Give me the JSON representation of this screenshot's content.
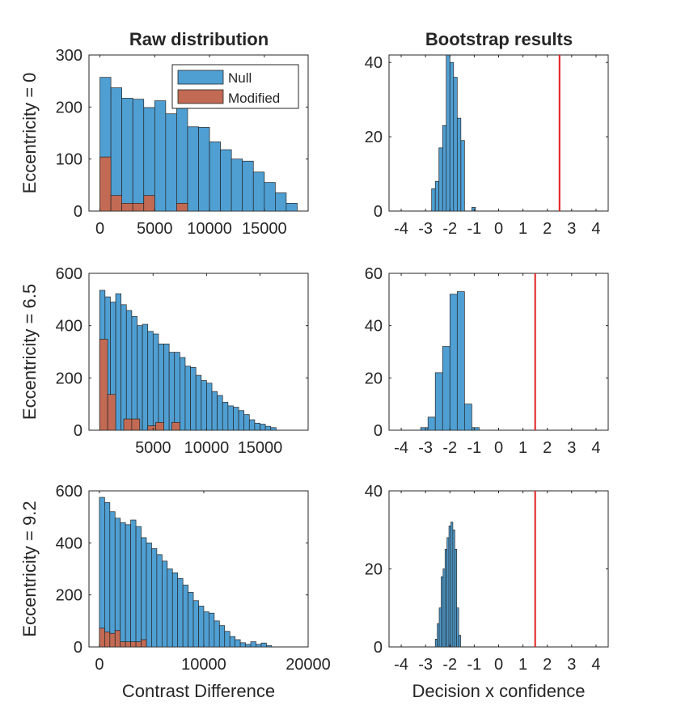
{
  "colors": {
    "null": "#4f9fd3",
    "modified": "#c26a53",
    "axis": "#262626",
    "refline": "#e11f1f"
  },
  "legend": {
    "null_label": "Null",
    "modified_label": "Modified"
  },
  "chart_data": [
    {
      "type": "bar",
      "title": "Raw distribution",
      "ylabel": "Eccentricity = 0",
      "xlabel": "",
      "xlim": [
        -1000,
        19000
      ],
      "ylim": [
        0,
        300
      ],
      "xticks": [
        0,
        5000,
        10000,
        15000
      ],
      "xtick_labels": [
        "0",
        "5000",
        "10000",
        "15000"
      ],
      "yticks": [
        0,
        100,
        200,
        300
      ],
      "ytick_labels": [
        "0",
        "100",
        "200",
        "300"
      ],
      "legend": "top-right",
      "series": [
        {
          "name": "Null",
          "role": "null",
          "bin_edges": [
            0,
            1000,
            2000,
            3000,
            4000,
            5000,
            6000,
            7000,
            8000,
            9000,
            10000,
            11000,
            12000,
            13000,
            14000,
            15000,
            16000,
            17000,
            18000
          ],
          "values": [
            257,
            237,
            217,
            215,
            199,
            212,
            187,
            200,
            162,
            161,
            133,
            118,
            100,
            96,
            75,
            55,
            35,
            15
          ]
        },
        {
          "name": "Modified",
          "role": "modified",
          "bin_edges": [
            0,
            1000,
            2000,
            3000,
            4000,
            5000,
            6000,
            7000,
            8000
          ],
          "values": [
            104,
            30,
            15,
            15,
            30,
            0,
            0,
            15
          ]
        }
      ]
    },
    {
      "type": "bar",
      "title": "Bootstrap results",
      "ylabel": "",
      "xlabel": "",
      "xlim": [
        -4.5,
        4.5
      ],
      "ylim": [
        0,
        42
      ],
      "xticks": [
        -4,
        -3,
        -2,
        -1,
        0,
        1,
        2,
        3,
        4
      ],
      "xtick_labels": [
        "-4",
        "-3",
        "-2",
        "-1",
        "0",
        "1",
        "2",
        "3",
        "4"
      ],
      "yticks": [
        0,
        20,
        40
      ],
      "ytick_labels": [
        "0",
        "20",
        "40"
      ],
      "refline_x": 2.5,
      "series": [
        {
          "name": "",
          "role": "null",
          "bin_edges": [
            -2.75,
            -2.6,
            -2.45,
            -2.3,
            -2.15,
            -2.0,
            -1.85,
            -1.7,
            -1.55,
            -1.4,
            -1.25,
            -1.1,
            -0.95
          ],
          "values": [
            6,
            8,
            17,
            23,
            42,
            40,
            36,
            25,
            19,
            0,
            0,
            1
          ]
        }
      ]
    },
    {
      "type": "bar",
      "title": "",
      "ylabel": "Eccentricity = 6.5",
      "xlabel": "",
      "xlim": [
        -1000,
        19500
      ],
      "ylim": [
        0,
        600
      ],
      "xticks": [
        5000,
        10000,
        15000
      ],
      "xtick_labels": [
        "5000",
        "10000",
        "15000"
      ],
      "yticks": [
        0,
        200,
        400,
        600
      ],
      "ytick_labels": [
        "0",
        "200",
        "400",
        "600"
      ],
      "series": [
        {
          "name": "Null",
          "role": "null",
          "bin_edges": [
            0,
            500,
            1000,
            1500,
            2000,
            2500,
            3000,
            3500,
            4000,
            4500,
            5000,
            5500,
            6000,
            6500,
            7000,
            7500,
            8000,
            8500,
            9000,
            9500,
            10000,
            10500,
            11000,
            11500,
            12000,
            12500,
            13000,
            13500,
            14000,
            14500,
            15000,
            15500,
            16000,
            16500
          ],
          "values": [
            535,
            510,
            490,
            522,
            480,
            458,
            435,
            400,
            405,
            378,
            368,
            330,
            330,
            298,
            298,
            278,
            245,
            240,
            210,
            190,
            180,
            148,
            133,
            107,
            93,
            88,
            75,
            60,
            40,
            27,
            23,
            15,
            10
          ]
        },
        {
          "name": "Modified",
          "role": "modified",
          "bin_edges": [
            0,
            750,
            1500,
            2250,
            3000,
            3750,
            4500,
            5250,
            6000,
            6750,
            7500
          ],
          "values": [
            348,
            137,
            0,
            43,
            43,
            0,
            17,
            30,
            0,
            30
          ]
        }
      ]
    },
    {
      "type": "bar",
      "title": "",
      "ylabel": "",
      "xlabel": "",
      "xlim": [
        -4.5,
        4.5
      ],
      "ylim": [
        0,
        60
      ],
      "xticks": [
        -4,
        -3,
        -2,
        -1,
        0,
        1,
        2,
        3,
        4
      ],
      "xtick_labels": [
        "-4",
        "-3",
        "-2",
        "-1",
        "0",
        "1",
        "2",
        "3",
        "4"
      ],
      "yticks": [
        0,
        20,
        40,
        60
      ],
      "ytick_labels": [
        "0",
        "20",
        "40",
        "60"
      ],
      "refline_x": 1.5,
      "series": [
        {
          "name": "",
          "role": "null",
          "bin_edges": [
            -3.2,
            -2.9,
            -2.6,
            -2.3,
            -2.0,
            -1.7,
            -1.4,
            -1.1,
            -0.8
          ],
          "values": [
            1,
            5,
            22,
            32,
            52,
            53,
            10,
            1
          ]
        }
      ]
    },
    {
      "type": "bar",
      "title": "",
      "ylabel": "Eccentricity = 9.2",
      "xlabel": "Contrast Difference",
      "xlim": [
        -1000,
        20000
      ],
      "ylim": [
        0,
        600
      ],
      "xticks": [
        0,
        10000,
        20000
      ],
      "xtick_labels": [
        "0",
        "10000",
        "20000"
      ],
      "yticks": [
        0,
        200,
        400,
        600
      ],
      "ytick_labels": [
        "0",
        "200",
        "400",
        "600"
      ],
      "series": [
        {
          "name": "Null",
          "role": "null",
          "bin_edges": [
            0,
            500,
            1000,
            1500,
            2000,
            2500,
            3000,
            3500,
            4000,
            4500,
            5000,
            5500,
            6000,
            6500,
            7000,
            7500,
            8000,
            8500,
            9000,
            9500,
            10000,
            10500,
            11000,
            11500,
            12000,
            12500,
            13000,
            13500,
            14000,
            14500,
            15000,
            15500,
            16000,
            16500
          ],
          "values": [
            575,
            555,
            520,
            495,
            478,
            470,
            488,
            463,
            420,
            400,
            378,
            355,
            330,
            300,
            285,
            263,
            238,
            210,
            178,
            157,
            135,
            130,
            100,
            82,
            60,
            40,
            28,
            16,
            10,
            20,
            10,
            15,
            5
          ]
        },
        {
          "name": "Modified",
          "role": "modified",
          "bin_edges": [
            0,
            500,
            1000,
            1500,
            2000,
            2500,
            3000,
            3500,
            4000,
            4500
          ],
          "values": [
            72,
            58,
            52,
            63,
            20,
            20,
            20,
            20,
            28
          ]
        }
      ]
    },
    {
      "type": "bar",
      "title": "",
      "ylabel": "",
      "xlabel": "Decision x confidence",
      "xlim": [
        -4.5,
        4.5
      ],
      "ylim": [
        0,
        40
      ],
      "xticks": [
        -4,
        -3,
        -2,
        -1,
        0,
        1,
        2,
        3,
        4
      ],
      "xtick_labels": [
        "-4",
        "-3",
        "-2",
        "-1",
        "0",
        "1",
        "2",
        "3",
        "4"
      ],
      "yticks": [
        0,
        20,
        40
      ],
      "ytick_labels": [
        "0",
        "20",
        "40"
      ],
      "refline_x": 1.5,
      "series": [
        {
          "name": "",
          "role": "null",
          "bin_edges": [
            -2.6,
            -2.52,
            -2.44,
            -2.36,
            -2.28,
            -2.2,
            -2.12,
            -2.04,
            -1.96,
            -1.88,
            -1.8,
            -1.72,
            -1.64,
            -1.56
          ],
          "values": [
            2,
            6,
            10,
            18,
            20,
            25,
            28,
            31,
            32,
            30,
            25,
            10,
            3
          ]
        }
      ]
    }
  ]
}
